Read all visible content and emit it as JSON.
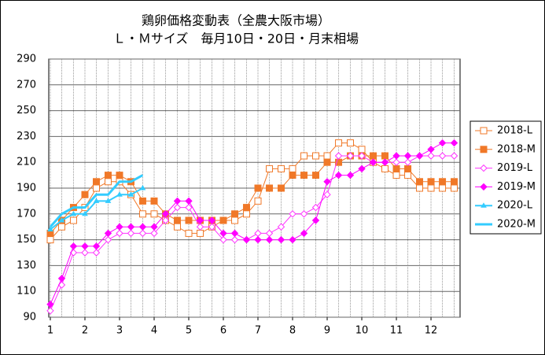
{
  "chart_data": {
    "type": "line",
    "title": [
      "鶏卵価格変動表（全農大阪市場）",
      "Ｌ・Ｍサイズ　毎月10日・20日・月末相場"
    ],
    "x": [
      1,
      1.33,
      1.67,
      2,
      2.33,
      2.67,
      3,
      3.33,
      3.67,
      4,
      4.33,
      4.67,
      5,
      5.33,
      5.67,
      6,
      6.33,
      6.67,
      7,
      7.33,
      7.67,
      8,
      8.33,
      8.67,
      9,
      9.33,
      9.67,
      10,
      10.33,
      10.67,
      11,
      11.33,
      11.67,
      12,
      12.33,
      12.67
    ],
    "xlim": [
      0.955,
      12.84
    ],
    "xticks": [
      1,
      2,
      3,
      4,
      5,
      6,
      7,
      8,
      9,
      10,
      11,
      12
    ],
    "ylim": [
      90,
      290
    ],
    "yticks": [
      90,
      110,
      130,
      150,
      170,
      190,
      210,
      230,
      250,
      270,
      290
    ],
    "grid": true,
    "legend": "right",
    "series": [
      {
        "name": "2018-L",
        "color": "#f07828",
        "marker": "square",
        "filled": false,
        "width": 1,
        "values": [
          150,
          160,
          165,
          175,
          190,
          195,
          195,
          185,
          170,
          170,
          165,
          160,
          155,
          155,
          160,
          165,
          165,
          170,
          180,
          205,
          205,
          205,
          215,
          215,
          215,
          225,
          225,
          220,
          210,
          205,
          200,
          200,
          190,
          190,
          190,
          190
        ]
      },
      {
        "name": "2018-M",
        "color": "#f07828",
        "marker": "square",
        "filled": true,
        "width": 1,
        "values": [
          155,
          165,
          175,
          185,
          195,
          200,
          200,
          195,
          180,
          180,
          170,
          165,
          165,
          165,
          165,
          165,
          170,
          175,
          190,
          190,
          190,
          200,
          200,
          200,
          210,
          210,
          215,
          215,
          215,
          215,
          205,
          205,
          195,
          195,
          195,
          195
        ]
      },
      {
        "name": "2019-L",
        "color": "#ff33ff",
        "marker": "diamond",
        "filled": false,
        "width": 1,
        "values": [
          95,
          115,
          140,
          140,
          140,
          150,
          155,
          155,
          155,
          155,
          165,
          175,
          175,
          160,
          160,
          150,
          150,
          150,
          155,
          155,
          160,
          170,
          170,
          175,
          185,
          215,
          215,
          215,
          210,
          210,
          210,
          210,
          215,
          215,
          215,
          215
        ]
      },
      {
        "name": "2019-M",
        "color": "#ff00ff",
        "marker": "diamond",
        "filled": true,
        "width": 1,
        "values": [
          100,
          120,
          145,
          145,
          145,
          155,
          160,
          160,
          160,
          160,
          170,
          180,
          180,
          165,
          165,
          155,
          155,
          150,
          150,
          150,
          150,
          150,
          155,
          165,
          195,
          200,
          200,
          205,
          210,
          210,
          215,
          215,
          215,
          220,
          225,
          225
        ]
      },
      {
        "name": "2020-L",
        "color": "#33ccff",
        "marker": "triangle",
        "filled": true,
        "width": 2,
        "values": [
          158,
          165,
          170,
          170,
          180,
          180,
          185,
          185,
          190,
          null,
          null,
          null,
          null,
          null,
          null,
          null,
          null,
          null,
          null,
          null,
          null,
          null,
          null,
          null,
          null,
          null,
          null,
          null,
          null,
          null,
          null,
          null,
          null,
          null,
          null,
          null
        ]
      },
      {
        "name": "2020-M",
        "color": "#33ccff",
        "marker": "none",
        "filled": true,
        "width": 3,
        "values": [
          160,
          170,
          175,
          175,
          185,
          185,
          195,
          195,
          200,
          null,
          null,
          null,
          null,
          null,
          null,
          null,
          null,
          null,
          null,
          null,
          null,
          null,
          null,
          null,
          null,
          null,
          null,
          null,
          null,
          null,
          null,
          null,
          null,
          null,
          null,
          null
        ]
      }
    ]
  }
}
